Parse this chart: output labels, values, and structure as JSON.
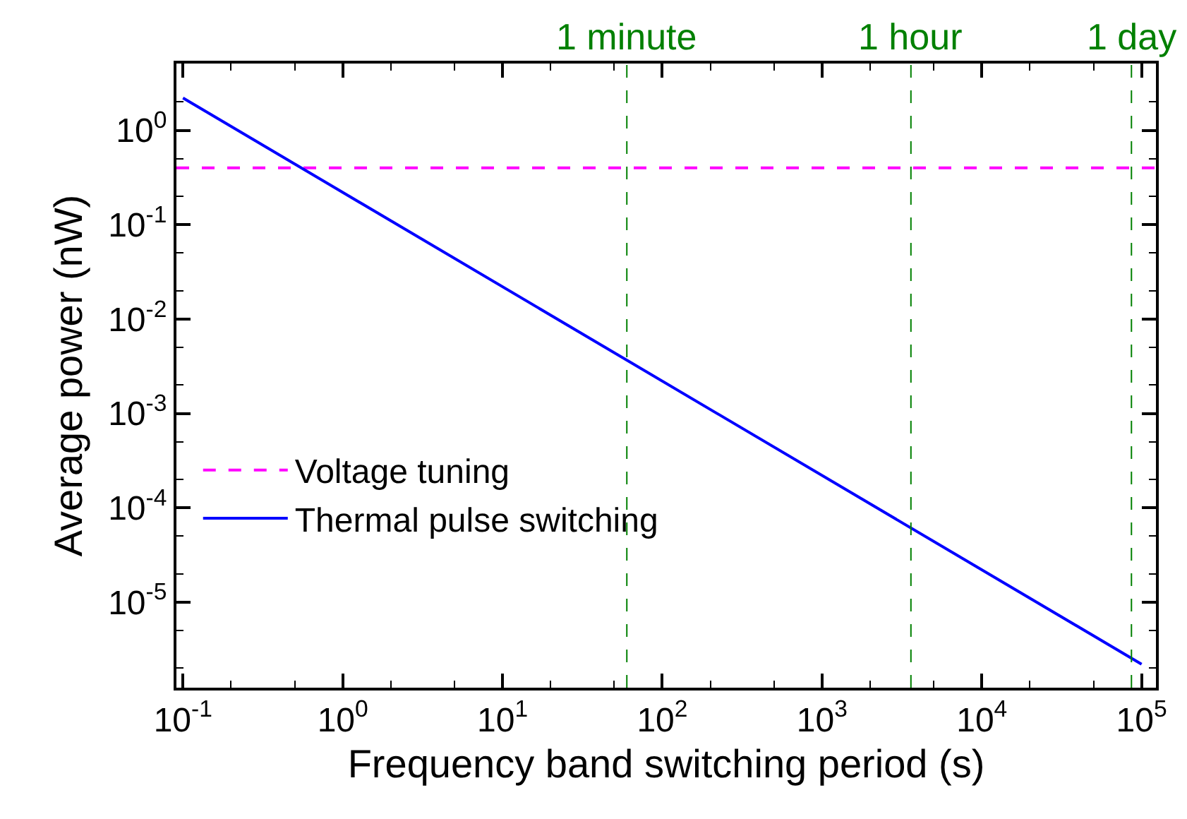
{
  "chart_data": {
    "type": "line",
    "xlabel": "Frequency band switching period (s)",
    "ylabel": "Average power (nW)",
    "log": "xy",
    "legend": "bottom left",
    "marker": "none",
    "xlim": [
      0.091,
      123000
    ],
    "ylim": [
      1.24e-06,
      5.1
    ],
    "xticks": [
      {
        "value": 0.1,
        "label": "10$^{-1}$"
      },
      {
        "value": 1,
        "label": "10$^{0}$"
      },
      {
        "value": 10,
        "label": "10$^{1}$"
      },
      {
        "value": 100,
        "label": "10$^{2}$"
      },
      {
        "value": 1000,
        "label": "10$^{3}$"
      },
      {
        "value": 10000,
        "label": "10$^{4}$"
      },
      {
        "value": 100000,
        "label": "10$^{5}$"
      }
    ],
    "yticks": [
      {
        "value": 1,
        "label": "10$^{0}$"
      },
      {
        "value": 0.1,
        "label": "10$^{-1}$"
      },
      {
        "value": 0.01,
        "label": "10$^{-2}$"
      },
      {
        "value": 0.001,
        "label": "10$^{-3}$"
      },
      {
        "value": 0.0001,
        "label": "10$^{-4}$"
      },
      {
        "value": 1e-05,
        "label": "10$^{-5}$"
      }
    ],
    "series": [
      {
        "name": "Voltage tuning",
        "color": "#ff00ff",
        "line_style": "dashed",
        "x": [
          0.091,
          123000
        ],
        "values": [
          0.4,
          0.4
        ]
      },
      {
        "name": "Thermal pulse switching",
        "color": "#0000ff",
        "line_style": "solid",
        "x": [
          0.1,
          100000
        ],
        "values": [
          2.2,
          2.2e-06
        ]
      }
    ],
    "ref_lines": [
      {
        "axis": "x",
        "value": 60,
        "label": "1 minute",
        "color": "#008000",
        "line_style": "dashed"
      },
      {
        "axis": "x",
        "value": 3600,
        "label": "1 hour",
        "color": "#008000",
        "line_style": "dashed"
      },
      {
        "axis": "x",
        "value": 86400,
        "label": "1 day",
        "color": "#008000",
        "line_style": "dashed"
      }
    ]
  }
}
